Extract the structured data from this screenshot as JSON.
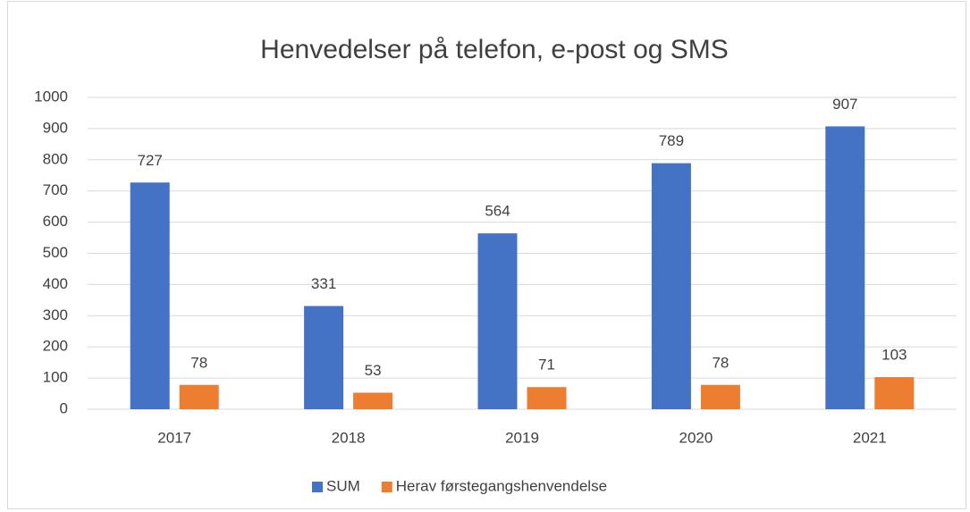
{
  "chart_data": {
    "type": "bar",
    "title": "Henvedelser på telefon, e-post og SMS",
    "categories": [
      "2017",
      "2018",
      "2019",
      "2020",
      "2021"
    ],
    "series": [
      {
        "name": "SUM",
        "color": "#4472c4",
        "values": [
          727,
          331,
          564,
          789,
          907
        ]
      },
      {
        "name": "Herav førstegangshenvendelse",
        "color": "#ed7d31",
        "values": [
          78,
          53,
          71,
          78,
          103
        ]
      }
    ],
    "ylim": [
      0,
      1000
    ],
    "yticks": [
      0,
      100,
      200,
      300,
      400,
      500,
      600,
      700,
      800,
      900,
      1000
    ],
    "grid": true,
    "legend": "bottom"
  }
}
